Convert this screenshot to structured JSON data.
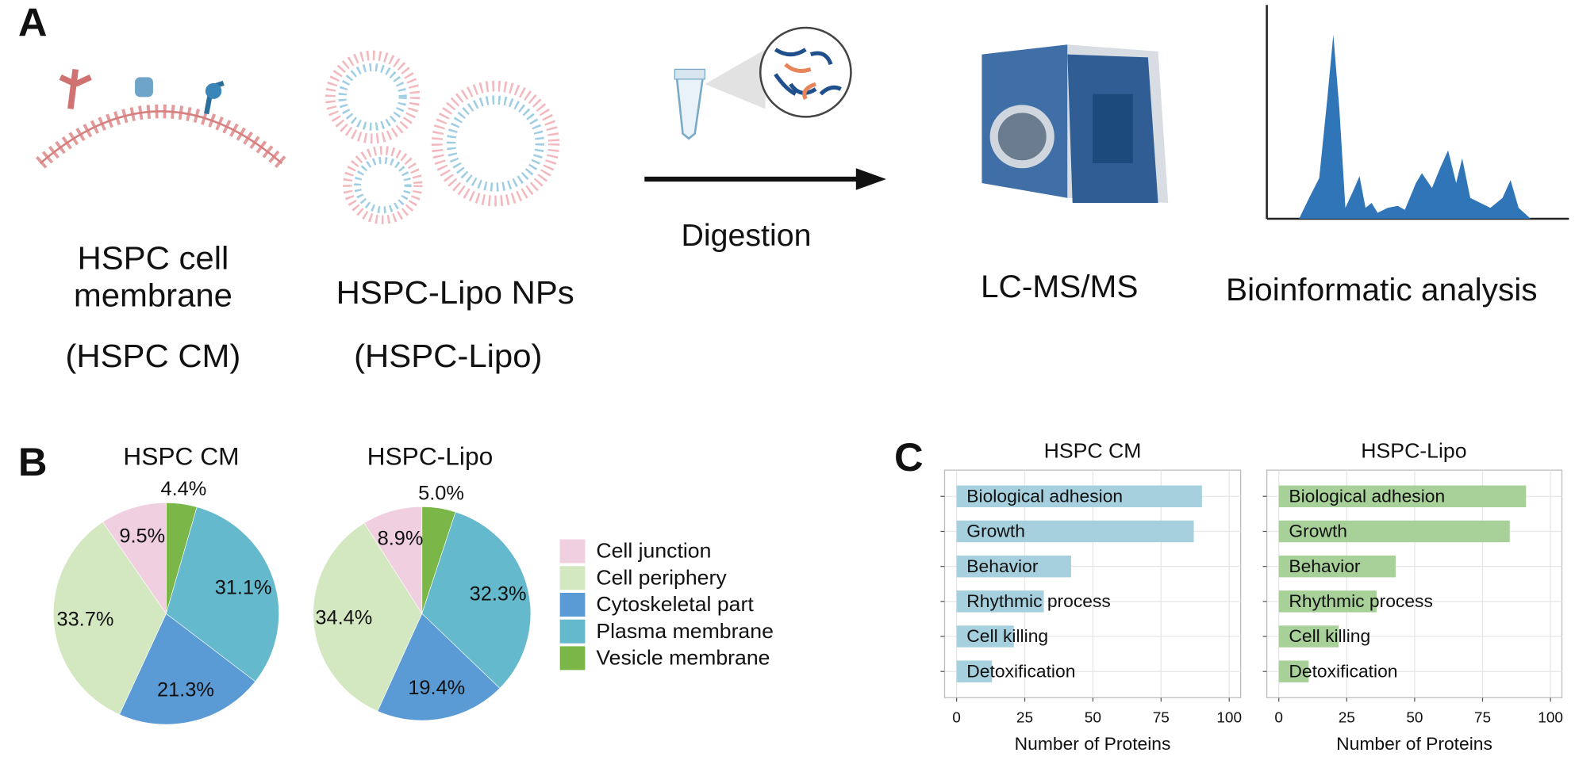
{
  "panel_a": {
    "letter": "A",
    "cell_membrane": [
      "HSPC cell",
      "membrane",
      "(HSPC CM)"
    ],
    "liposome": [
      "HSPC-Lipo NPs",
      "(HSPC-Lipo)"
    ],
    "digestion": "Digestion",
    "lcms": "LC-MS/MS",
    "bioinformatics": "Bioinformatic analysis"
  },
  "panel_b_letter": "B",
  "panel_c_letter": "C",
  "chart_data": [
    {
      "type": "pie",
      "categories": [
        "Cell junction",
        "Cell periphery",
        "Cytoskeletal part",
        "Plasma membrane",
        "Vesicle membrane"
      ],
      "colors": [
        "#f0cfe0",
        "#d3e8c0",
        "#5b9bd5",
        "#64b9cc",
        "#7ab648"
      ],
      "series": [
        {
          "name": "HSPC CM",
          "values": [
            9.5,
            33.7,
            21.3,
            31.1,
            4.4
          ],
          "value_labels": [
            "9.5%",
            "33.7%",
            "21.3%",
            "31.1%",
            "4.4%"
          ]
        },
        {
          "name": "HSPC-Lipo",
          "values": [
            8.9,
            34.4,
            19.4,
            32.3,
            5.0
          ],
          "value_labels": [
            "8.9%",
            "34.4%",
            "19.4%",
            "32.3%",
            "5.0%"
          ]
        }
      ]
    },
    {
      "type": "hbar",
      "categories": [
        "Biological adhesion",
        "Growth",
        "Behavior",
        "Rhythmic process",
        "Cell killing",
        "Detoxification"
      ],
      "x_label": "Number of Proteins",
      "xlim": [
        -4.4,
        104.2
      ],
      "xticks": [
        0,
        25,
        50,
        75,
        100
      ],
      "grid": true,
      "series": [
        {
          "name": "HSPC CM",
          "color": "#a6d0de",
          "values": [
            90,
            87,
            42,
            32,
            21,
            13
          ]
        },
        {
          "name": "HSPC-Lipo",
          "color": "#a8d19a",
          "values": [
            91,
            85,
            43,
            36,
            22,
            11
          ]
        }
      ]
    }
  ]
}
